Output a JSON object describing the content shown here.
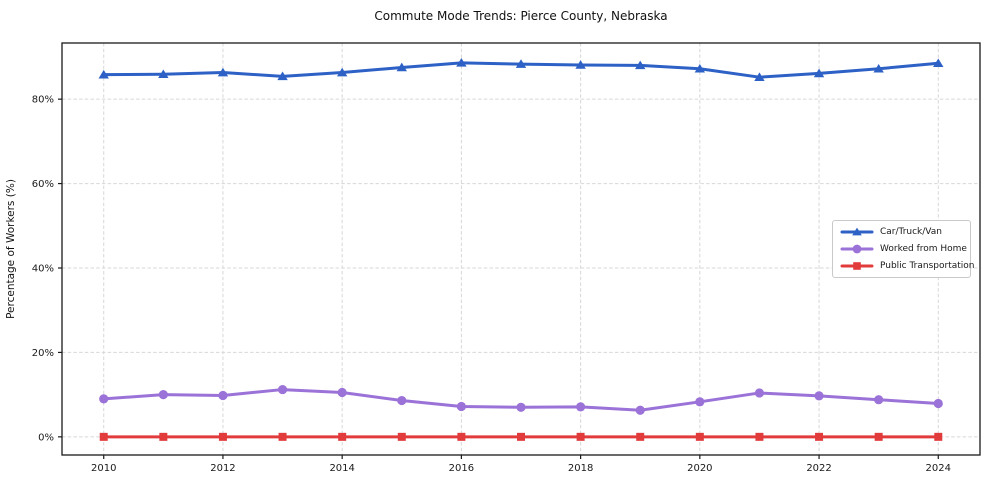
{
  "chart_data": {
    "type": "line",
    "title": "Commute Mode Trends: Pierce County, Nebraska",
    "xlabel": "",
    "ylabel": "Percentage of Workers (%)",
    "x": [
      2010,
      2011,
      2012,
      2013,
      2014,
      2015,
      2016,
      2017,
      2018,
      2019,
      2020,
      2021,
      2022,
      2023,
      2024
    ],
    "series": [
      {
        "name": "Car/Truck/Van",
        "color": "#2d61c6",
        "marker": "triangle",
        "values": [
          85.8,
          85.9,
          86.3,
          85.4,
          86.3,
          87.5,
          88.6,
          88.3,
          88.1,
          88.0,
          87.2,
          85.2,
          86.1,
          87.2,
          88.5
        ]
      },
      {
        "name": "Worked from Home",
        "color": "#9b72d8",
        "marker": "circle",
        "values": [
          9.0,
          10.0,
          9.8,
          11.2,
          10.5,
          8.6,
          7.2,
          7.0,
          7.1,
          6.3,
          8.3,
          10.4,
          9.7,
          8.8,
          7.9
        ]
      },
      {
        "name": "Public Transportation",
        "color": "#e23b3c",
        "marker": "square",
        "values": [
          0.0,
          0.0,
          0.0,
          0.0,
          0.0,
          0.0,
          0.0,
          0.0,
          0.0,
          0.0,
          0.0,
          0.0,
          0.0,
          0.0,
          0.0
        ]
      }
    ],
    "xticks": {
      "values": [
        2010,
        2012,
        2014,
        2016,
        2018,
        2020,
        2022,
        2024
      ],
      "labels": [
        "2010",
        "2012",
        "2014",
        "2016",
        "2018",
        "2020",
        "2022",
        "2024"
      ]
    },
    "yticks": {
      "values": [
        0,
        20,
        40,
        60,
        80
      ],
      "labels": [
        "0%",
        "20%",
        "40%",
        "60%",
        "80%"
      ]
    },
    "xlim": [
      2009.3,
      2024.7
    ],
    "ylim": [
      -4.3,
      93.3
    ],
    "grid": true,
    "grid_color": "#d7d7d7",
    "axis_color": "#1a1a1a",
    "legend_position": "center right"
  }
}
